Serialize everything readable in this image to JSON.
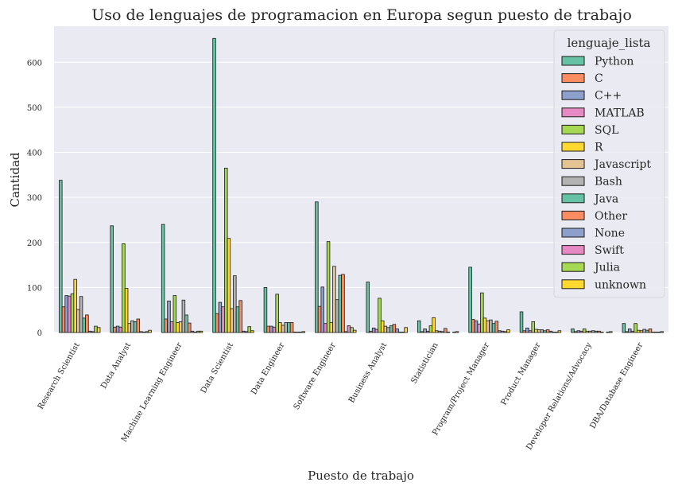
{
  "chart_data": {
    "type": "bar",
    "title": "Uso de lenguajes de programacion en Europa segun puesto de trabajo",
    "xlabel": "Puesto de trabajo",
    "ylabel": "Cantidad",
    "ylim": [
      0,
      680
    ],
    "yticks": [
      0,
      100,
      200,
      300,
      400,
      500,
      600
    ],
    "grid": true,
    "legend_title": "lenguaje_lista",
    "legend_position": "top-right",
    "categories": [
      "Research Scientist",
      "Data Analyst",
      "Machine Learning Engineer",
      "Data Scientist",
      "Data Engineer",
      "Software Engineer",
      "Business Analyst",
      "Statistician",
      "Program/Project Manager",
      "Product Manager",
      "Developer Relations/Advocacy",
      "DBA/Database Engineer"
    ],
    "series": [
      {
        "name": "Python",
        "color": "#66c2a5",
        "values": [
          338,
          237,
          240,
          653,
          100,
          290,
          112,
          26,
          145,
          46,
          8,
          20
        ]
      },
      {
        "name": "C",
        "color": "#fc8d62",
        "values": [
          57,
          12,
          30,
          42,
          14,
          58,
          3,
          2,
          29,
          4,
          2,
          2
        ]
      },
      {
        "name": "C++",
        "color": "#8da0cb",
        "values": [
          82,
          14,
          70,
          67,
          14,
          101,
          10,
          8,
          26,
          10,
          4,
          8
        ]
      },
      {
        "name": "MATLAB",
        "color": "#e78ac3",
        "values": [
          81,
          12,
          24,
          57,
          12,
          20,
          7,
          3,
          19,
          4,
          3,
          3
        ]
      },
      {
        "name": "SQL",
        "color": "#a6d854",
        "values": [
          86,
          197,
          82,
          365,
          85,
          202,
          76,
          15,
          88,
          24,
          8,
          20
        ]
      },
      {
        "name": "R",
        "color": "#ffd92f",
        "values": [
          118,
          98,
          22,
          209,
          22,
          22,
          26,
          33,
          32,
          7,
          3,
          5
        ]
      },
      {
        "name": "Javascript",
        "color": "#e5c494",
        "values": [
          51,
          20,
          24,
          53,
          16,
          147,
          14,
          4,
          26,
          6,
          3,
          4
        ]
      },
      {
        "name": "Bash",
        "color": "#b3b3b3",
        "values": [
          80,
          26,
          72,
          126,
          22,
          73,
          11,
          3,
          28,
          6,
          4,
          7
        ]
      },
      {
        "name": "Java",
        "color": "#66c2a5",
        "values": [
          32,
          24,
          39,
          57,
          22,
          127,
          15,
          2,
          20,
          4,
          3,
          5
        ]
      },
      {
        "name": "Other",
        "color": "#fc8d62",
        "values": [
          39,
          30,
          21,
          71,
          22,
          129,
          18,
          9,
          25,
          6,
          3,
          8
        ]
      },
      {
        "name": "None",
        "color": "#8da0cb",
        "values": [
          3,
          2,
          3,
          3,
          1,
          2,
          8,
          1,
          4,
          3,
          1,
          1
        ]
      },
      {
        "name": "Swift",
        "color": "#e78ac3",
        "values": [
          2,
          1,
          1,
          2,
          1,
          15,
          1,
          0,
          3,
          1,
          0,
          1
        ]
      },
      {
        "name": "Julia",
        "color": "#a6d854",
        "values": [
          14,
          2,
          3,
          13,
          1,
          11,
          1,
          1,
          2,
          1,
          1,
          1
        ]
      },
      {
        "name": "unknown",
        "color": "#ffd92f",
        "values": [
          11,
          5,
          3,
          4,
          2,
          5,
          11,
          2,
          6,
          4,
          2,
          2
        ]
      }
    ]
  }
}
